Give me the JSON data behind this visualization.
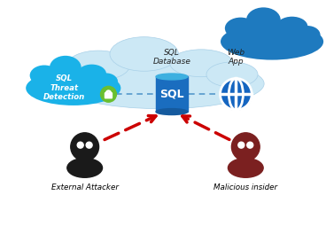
{
  "bg_color": "#ffffff",
  "cloud_main_color": "#cce8f5",
  "cloud_main_edge": "#a8d0e8",
  "cloud_dark_color": "#1e7abf",
  "sql_threat_cloud_color": "#1ab2e8",
  "sql_cylinder_body": "#1a6dbf",
  "sql_cylinder_top": "#3db0e0",
  "sql_cylinder_bot": "#155a9e",
  "web_icon_color": "#1565c0",
  "arrow_color": "#cc0000",
  "dashed_line_color": "#5599cc",
  "lock_color": "#6abf30",
  "external_attacker_color": "#1a1a1a",
  "malicious_insider_color": "#7b2020",
  "text_color": "#1a1a1a",
  "title_sql_threat": "SQL\nThreat\nDetection",
  "title_sql_db": "SQL\nDatabase",
  "title_web_app": "Web\nApp",
  "label_external": "External Attacker",
  "label_malicious": "Malicious insider",
  "label_sql": "SQL"
}
